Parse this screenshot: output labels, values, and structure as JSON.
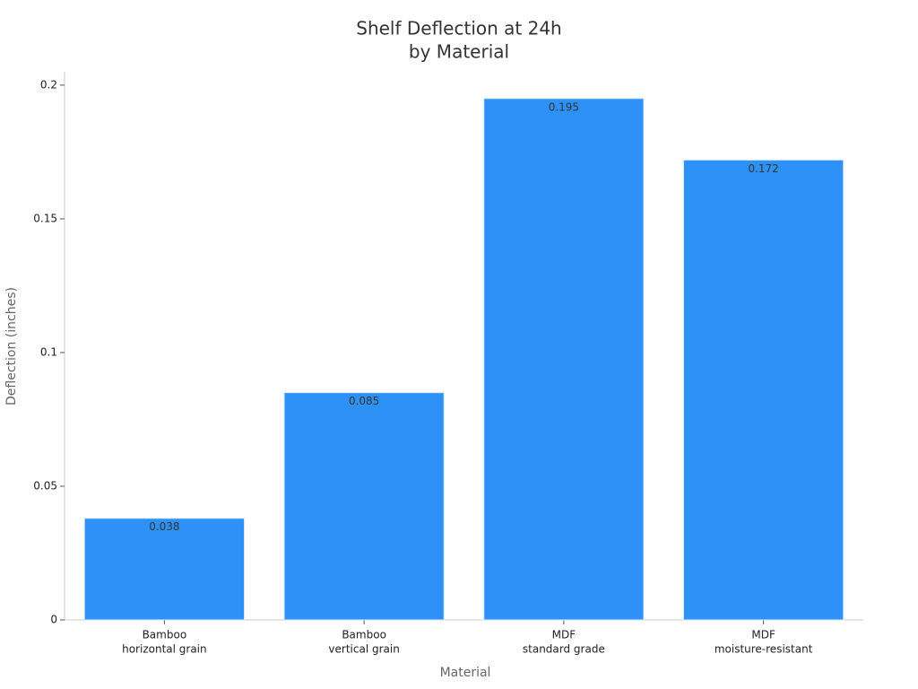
{
  "chart_data": {
    "type": "bar",
    "title": [
      "Shelf Deflection at 24h",
      "by Material"
    ],
    "x_label": "Material",
    "y_label": "Deflection (inches)",
    "categories": [
      [
        "Bamboo",
        "horizontal grain"
      ],
      [
        "Bamboo",
        "vertical grain"
      ],
      [
        "MDF",
        "standard grade"
      ],
      [
        "MDF",
        "moisture-resistant"
      ]
    ],
    "values": [
      0.038,
      0.085,
      0.195,
      0.172
    ],
    "color": "#2e91f8",
    "ylim": [
      0,
      0.205
    ],
    "yticks": [
      0,
      0.05,
      0.1,
      0.15,
      0.2
    ],
    "grid": false
  }
}
